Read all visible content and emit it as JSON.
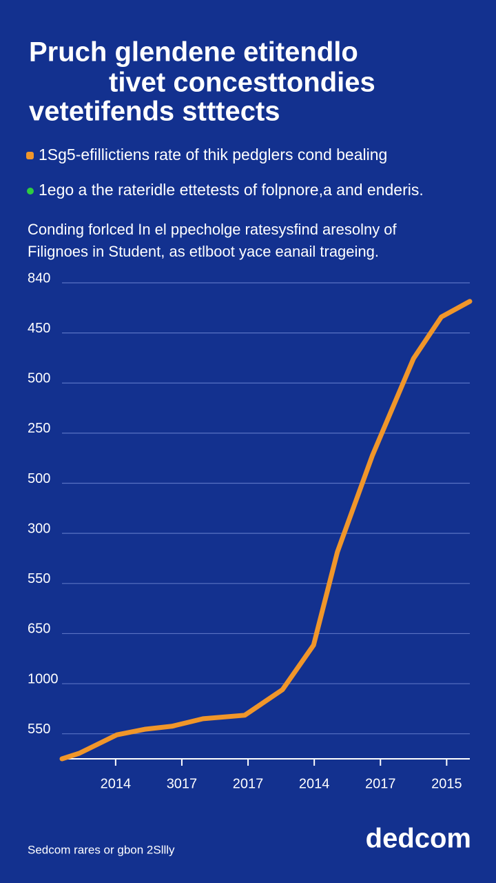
{
  "chart_data": {
    "type": "line",
    "title": [
      "Pruch glendene  etitendlo",
      "tivet concesttondies",
      "vetetifends stttects"
    ],
    "legend": [
      {
        "name": "1Sg5-efillictiens rate of thik pedglers cond bealing",
        "color": "#f0962a"
      },
      {
        "name": "1egо a the rateridle ettetests of folpnore,a and enderis.",
        "color": "#2ecc40"
      }
    ],
    "subtitle": [
      "Conding forlced In el ppecholge ratesysfind aresolny of",
      "Filignoes in Student, as etlboot yace eanail trageing."
    ],
    "x": [
      0.19,
      0.45,
      1.02,
      1.44,
      1.85,
      2.32,
      2.95,
      3.52,
      3.99,
      4.35,
      4.88,
      5.5,
      5.92,
      6.35
    ],
    "series": [
      {
        "color": "#f0962a",
        "values": [
          0.5,
          0.61,
          0.98,
          1.09,
          1.15,
          1.3,
          1.37,
          1.88,
          2.77,
          4.63,
          6.56,
          8.49,
          9.32,
          9.63
        ]
      }
    ],
    "xlim": [
      0.19,
      6.35
    ],
    "xticks": [
      {
        "value": 1,
        "label": "2014"
      },
      {
        "value": 2,
        "label": "3017"
      },
      {
        "value": 3,
        "label": "2017"
      },
      {
        "value": 4,
        "label": "2014"
      },
      {
        "value": 5,
        "label": "2017"
      },
      {
        "value": 6,
        "label": "2015"
      }
    ],
    "ylim": [
      0.5,
      10
    ],
    "yticks": [
      {
        "value": 1,
        "label": "550"
      },
      {
        "value": 2,
        "label": "1000"
      },
      {
        "value": 3,
        "label": "650"
      },
      {
        "value": 4,
        "label": "550"
      },
      {
        "value": 5,
        "label": "300"
      },
      {
        "value": 6,
        "label": "500"
      },
      {
        "value": 7,
        "label": "250"
      },
      {
        "value": 8,
        "label": "500"
      },
      {
        "value": 9,
        "label": "450"
      },
      {
        "value": 10,
        "label": "840"
      }
    ],
    "grid": true,
    "footer": "Sedcom rares or gbon 2Sllly",
    "logo": "dedcom"
  }
}
